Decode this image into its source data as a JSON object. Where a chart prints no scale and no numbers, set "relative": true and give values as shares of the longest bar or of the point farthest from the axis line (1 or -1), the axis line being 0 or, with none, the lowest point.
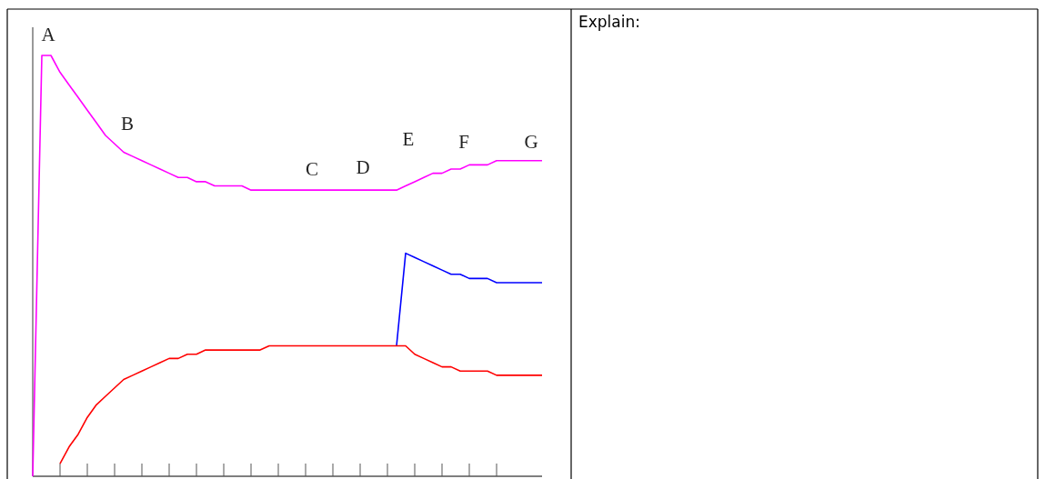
{
  "chart_data": {
    "type": "line",
    "relative": true,
    "categories": [
      null,
      null,
      null,
      null,
      null,
      null,
      null,
      null,
      null,
      null,
      null,
      null,
      null,
      null,
      null,
      null,
      null,
      null,
      null,
      null,
      null,
      null,
      null,
      null,
      null,
      null,
      null,
      null,
      null,
      null,
      null,
      null,
      null,
      null,
      null,
      null,
      null,
      null,
      null,
      null,
      null,
      null,
      null,
      null,
      null,
      null,
      null,
      null,
      null,
      null,
      null,
      null,
      null,
      null,
      null,
      null,
      null
    ],
    "series": [
      {
        "color": "#ff00ff",
        "values": [
          0,
          1,
          1,
          0.96,
          0.93,
          0.9,
          0.87,
          0.84,
          0.81,
          0.79,
          0.77,
          0.76,
          0.75,
          0.74,
          0.73,
          0.72,
          0.71,
          0.71,
          0.7,
          0.7,
          0.69,
          0.69,
          0.69,
          0.69,
          0.68,
          0.68,
          0.68,
          0.68,
          0.68,
          0.68,
          0.68,
          0.68,
          0.68,
          0.68,
          0.68,
          0.68,
          0.68,
          0.68,
          0.68,
          0.68,
          0.68,
          0.69,
          0.7,
          0.71,
          0.72,
          0.72,
          0.73,
          0.73,
          0.74,
          0.74,
          0.74,
          0.75,
          0.75,
          0.75,
          0.75,
          0.75,
          0.75
        ]
      },
      {
        "color": "#0000ff",
        "values": [
          null,
          null,
          null,
          null,
          null,
          null,
          null,
          null,
          null,
          null,
          null,
          null,
          null,
          null,
          null,
          null,
          null,
          null,
          null,
          null,
          null,
          null,
          null,
          null,
          null,
          null,
          null,
          null,
          null,
          null,
          null,
          null,
          null,
          null,
          null,
          null,
          null,
          null,
          null,
          null,
          0.31,
          0.53,
          0.52,
          0.51,
          0.5,
          0.49,
          0.48,
          0.48,
          0.47,
          0.47,
          0.47,
          0.46,
          0.46,
          0.46,
          0.46,
          0.46,
          0.46
        ]
      },
      {
        "color": "#ff0000",
        "values": [
          null,
          null,
          null,
          0.03,
          0.07,
          0.1,
          0.14,
          0.17,
          0.19,
          0.21,
          0.23,
          0.24,
          0.25,
          0.26,
          0.27,
          0.28,
          0.28,
          0.29,
          0.29,
          0.3,
          0.3,
          0.3,
          0.3,
          0.3,
          0.3,
          0.3,
          0.31,
          0.31,
          0.31,
          0.31,
          0.31,
          0.31,
          0.31,
          0.31,
          0.31,
          0.31,
          0.31,
          0.31,
          0.31,
          0.31,
          0.31,
          0.31,
          0.29,
          0.28,
          0.27,
          0.26,
          0.26,
          0.25,
          0.25,
          0.25,
          0.25,
          0.24,
          0.24,
          0.24,
          0.24,
          0.24,
          0.24
        ]
      }
    ],
    "annotations": [
      "A",
      "B",
      "C",
      "D",
      "E",
      "F",
      "G",
      "Explain:"
    ]
  }
}
